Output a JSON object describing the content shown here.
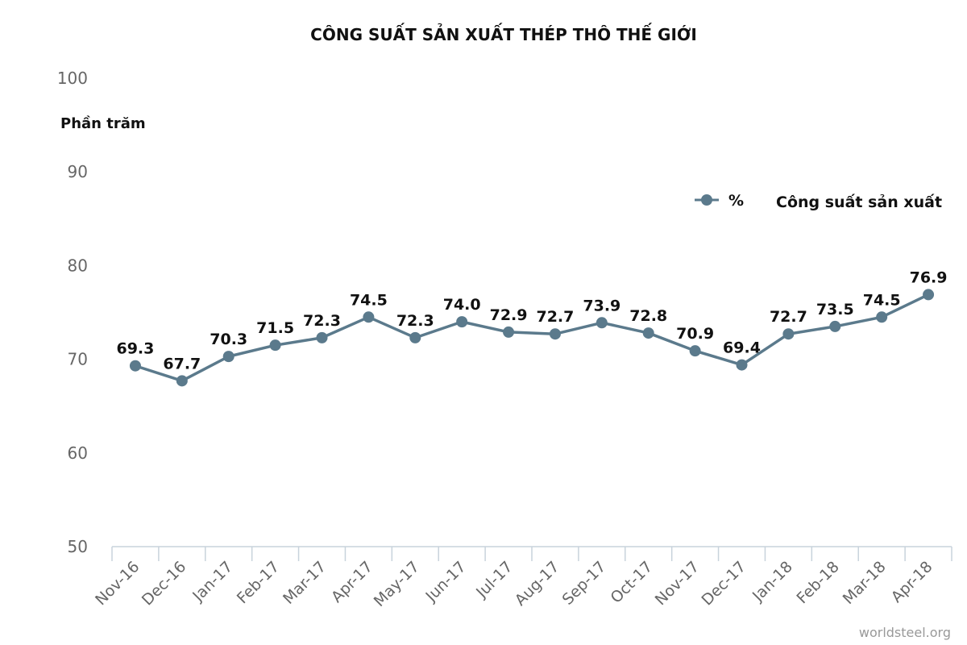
{
  "colors": {
    "series": "#5b7a8c",
    "axis": "#c8d3dc",
    "tick_text": "#666666",
    "text": "#111111"
  },
  "chart_data": {
    "type": "line",
    "title": "CÔNG SUẤT SẢN XUẤT THÉP THÔ THẾ GIỚI",
    "ylabel": "Phần trăm",
    "xlabel": "",
    "ylim": [
      50,
      100
    ],
    "yticks": [
      50,
      60,
      70,
      80,
      90,
      100
    ],
    "grid": false,
    "legend_position": "top-right",
    "categories": [
      "Nov-16",
      "Dec-16",
      "Jan-17",
      "Feb-17",
      "Mar-17",
      "Apr-17",
      "May-17",
      "Jun-17",
      "Jul-17",
      "Aug-17",
      "Sep-17",
      "Oct-17",
      "Nov-17",
      "Dec-17",
      "Jan-18",
      "Feb-18",
      "Mar-18",
      "Apr-18"
    ],
    "series": [
      {
        "name": "%",
        "values": [
          69.3,
          67.7,
          70.3,
          71.5,
          72.3,
          74.5,
          72.3,
          74.0,
          72.9,
          72.7,
          73.9,
          72.8,
          70.9,
          69.4,
          72.7,
          73.5,
          74.5,
          76.9
        ],
        "labels": [
          "69.3",
          "67.7",
          "70.3",
          "71.5",
          "72.3",
          "74.5",
          "72.3",
          "74.0",
          "72.9",
          "72.7",
          "73.9",
          "72.8",
          "70.9",
          "69.4",
          "72.7",
          "73.5",
          "74.5",
          "76.9"
        ]
      }
    ],
    "legend_note": "Công suất sản xuất",
    "source": "worldsteel.org"
  }
}
